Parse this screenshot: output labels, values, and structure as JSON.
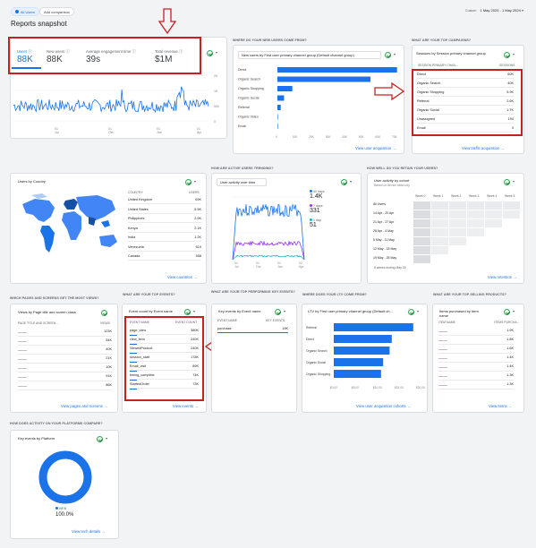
{
  "header": {
    "all_users_chip": "All Users",
    "add_comparison": "Add comparison",
    "date_label": "Custom",
    "date_range": "1 May 2023 - 1 May 2024",
    "page_title": "Reports snapshot"
  },
  "kpi": {
    "metrics": [
      {
        "label": "Users",
        "value": "88K"
      },
      {
        "label": "New users",
        "value": "88K"
      },
      {
        "label": "Average engagement time",
        "value": "39s"
      },
      {
        "label": "Total revenue",
        "value": "$1M"
      }
    ],
    "y_ticks": [
      "2K",
      "1K",
      "500",
      "0"
    ],
    "x_ticks": [
      [
        "01",
        "Jul"
      ],
      [
        "01",
        "Oct"
      ],
      [
        "01",
        "Jan"
      ],
      [
        "01",
        "Apr"
      ]
    ]
  },
  "acquisition": {
    "section": "Where do your new users come from?",
    "dropdown": "New users by First user primary channel group (Default channel group)",
    "channels": [
      "Direct",
      "Organic Search",
      "Organic Shopping",
      "Organic Social",
      "Referral",
      "Organic Video",
      "Email"
    ],
    "values": [
      72000,
      56000,
      9000,
      4000,
      2000,
      300,
      10
    ],
    "x_ticks": [
      "0",
      "10K",
      "20K",
      "30K",
      "40K",
      "50K",
      "60K",
      "70K"
    ],
    "link": "View user acquisition"
  },
  "campaigns": {
    "section": "What are your top campaigns?",
    "dropdown": "Sessions by Session primary channel group",
    "col1": "Session primary chan...",
    "col2": "Sessions",
    "rows": [
      {
        "name": "Direct",
        "value": "60K"
      },
      {
        "name": "Organic Search",
        "value": "40K"
      },
      {
        "name": "Organic Shopping",
        "value": "5.9K"
      },
      {
        "name": "Referral",
        "value": "2.6K"
      },
      {
        "name": "Organic Social",
        "value": "1.7K"
      },
      {
        "name": "Unassigned",
        "value": "194"
      },
      {
        "name": "Email",
        "value": "3"
      }
    ],
    "link": "View traffic acquisition"
  },
  "country": {
    "dropdown": "Users by Country",
    "col1": "Country",
    "col2": "Users",
    "rows": [
      {
        "name": "United Kingdom",
        "value": "69K"
      },
      {
        "name": "United States",
        "value": "5.9K"
      },
      {
        "name": "Philippines",
        "value": "2.9K"
      },
      {
        "name": "Kenya",
        "value": "2.1K"
      },
      {
        "name": "India",
        "value": "1.2K"
      },
      {
        "name": "Venezuela",
        "value": "619"
      },
      {
        "name": "Canada",
        "value": "558"
      }
    ],
    "link": "View countries"
  },
  "activity": {
    "section": "How are active users trending?",
    "dropdown": "User activity over time",
    "legend": [
      {
        "label": "30 days",
        "value": "1.4K",
        "color": "#1a73e8"
      },
      {
        "label": "7 days",
        "value": "331",
        "color": "#9334e6"
      },
      {
        "label": "1 day",
        "value": "51",
        "color": "#12b5cb"
      }
    ],
    "x_ticks": [
      [
        "01",
        "Jul"
      ],
      [
        "01",
        "Oct"
      ],
      [
        "01",
        "Jan"
      ],
      [
        "01",
        "Apr"
      ]
    ]
  },
  "retention": {
    "section": "How well do you retain your users?",
    "dropdown": "User activity by cohort",
    "subtitle": "Based on device data only",
    "columns": [
      "Week 0",
      "Week 1",
      "Week 2",
      "Week 3",
      "Week 4",
      "Week 5"
    ],
    "rows": [
      "All Users",
      "14 Apr - 20 Apr",
      "21 Apr - 27 Apr",
      "28 Apr - 4 May",
      "5 May - 11 May",
      "12 May - 18 May",
      "19 May - 25 May"
    ],
    "note": "6 weeks ending May 25",
    "link": "View retention"
  },
  "pages": {
    "section": "Which pages and screens get the most views?",
    "dropdown": "Views by Page title and screen class",
    "col1": "Page title and screen ...",
    "col2": "Views",
    "values": [
      "123K",
      "54K",
      "40K",
      "21K",
      "10K",
      "91K",
      "86K"
    ],
    "link": "View pages and screens"
  },
  "events": {
    "section": "What are your top events?",
    "dropdown": "Event count by Event name",
    "col1": "Event name",
    "col2": "Event count",
    "rows": [
      {
        "name": "page_view",
        "value": "380K"
      },
      {
        "name": "view_item",
        "value": "240K"
      },
      {
        "name": "ViewedProduct",
        "value": "240K"
      },
      {
        "name": "session_start",
        "value": "178K"
      },
      {
        "name": "Email_visit",
        "value": "89K"
      },
      {
        "name": "timing_complete",
        "value": "74K"
      },
      {
        "name": "StartedOrder",
        "value": "73K"
      }
    ],
    "link": "View events"
  },
  "key_events": {
    "section": "What are your top performing key events?",
    "dropdown": "Key events by Event name",
    "col1": "Event name",
    "col2": "Key events",
    "rows": [
      {
        "name": "purchase",
        "value": "19K"
      }
    ]
  },
  "ltv": {
    "section": "Where does your LTV come from?",
    "dropdown": "LTV by First user primary channel group (Default ch...",
    "channels": [
      "Referral",
      "Direct",
      "Organic Search",
      "Organic Social",
      "Organic Shopping"
    ],
    "values": [
      18.5,
      13.5,
      13,
      11.5,
      11
    ],
    "x_ticks": [
      "$0.00",
      "$5.00",
      "$10.00",
      "$15.00",
      "$20.00"
    ],
    "link": "View user acquisition cohorts"
  },
  "products": {
    "section": "What are your top selling products?",
    "dropdown": "Items purchased by Item name",
    "col1": "Item name",
    "col2": "Items purcha...",
    "values": [
      "1.9K",
      "1.8K",
      "1.6K",
      "1.4K",
      "1.4K",
      "1.3K",
      "1.3K"
    ],
    "link": "View items"
  },
  "platform": {
    "section": "How does activity on your platforms compare?",
    "dropdown": "Key events by Platform",
    "legend_label": "WEB",
    "legend_value": "100.0%",
    "link": "View tech details"
  },
  "colors": {
    "accent": "#1a73e8",
    "annotation": "#c5221f",
    "link": "#1a73e8"
  }
}
